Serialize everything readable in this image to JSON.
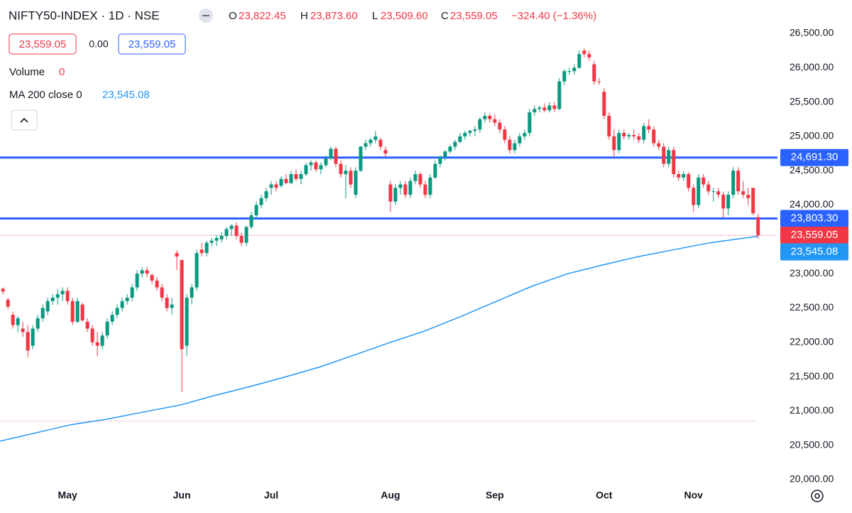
{
  "header": {
    "symbol": "NIFTY50-INDEX · 1D · NSE",
    "o_label": "O",
    "h_label": "H",
    "l_label": "L",
    "c_label": "C",
    "open": {
      "value": 23822.45,
      "label": "23,822.45"
    },
    "high": {
      "value": 23873.6,
      "label": "23,873.60"
    },
    "low": {
      "value": 23509.6,
      "label": "23,509.60"
    },
    "close": {
      "value": 23559.05,
      "label": "23,559.05"
    },
    "change": "−324.40 (−1.36%)",
    "sell": "23,559.05",
    "spread": "0.00",
    "buy": "23,559.05",
    "volume_label": "Volume",
    "volume_value": "0",
    "ma_label": "MA 200 close 0",
    "ma_value": "23,545.08"
  },
  "chart_data": {
    "type": "candlestick",
    "up_color": "#089981",
    "down_color": "#f23645",
    "grid": false,
    "ylim": [
      20000,
      26500
    ],
    "yticks": [
      {
        "value": 20000,
        "label": "20,000.00"
      },
      {
        "value": 20500,
        "label": "20,500.00"
      },
      {
        "value": 21000,
        "label": "21,000.00"
      },
      {
        "value": 21500,
        "label": "21,500.00"
      },
      {
        "value": 22000,
        "label": "22,000.00"
      },
      {
        "value": 22500,
        "label": "22,500.00"
      },
      {
        "value": 23000,
        "label": "23,000.00"
      },
      {
        "value": 23500,
        "label": "23,500.00"
      },
      {
        "value": 24000,
        "label": "24,000.00"
      },
      {
        "value": 24500,
        "label": "24,500.00"
      },
      {
        "value": 25000,
        "label": "25,000.00"
      },
      {
        "value": 25500,
        "label": "25,500.00"
      },
      {
        "value": 26000,
        "label": "26,000.00"
      },
      {
        "value": 26500,
        "label": "26,500.00"
      }
    ],
    "xlim": [
      -0.6,
      155.9
    ],
    "xticks": [
      {
        "value": 13,
        "label": "May"
      },
      {
        "value": 36,
        "label": "Jun"
      },
      {
        "value": 54,
        "label": "Jul"
      },
      {
        "value": 78,
        "label": "Aug"
      },
      {
        "value": 99,
        "label": "Sep"
      },
      {
        "value": 121,
        "label": "Oct"
      },
      {
        "value": 139,
        "label": "Nov"
      }
    ],
    "ohlc": [
      [
        22780,
        22800,
        22700,
        22740
      ],
      [
        22620,
        22650,
        22480,
        22520
      ],
      [
        22400,
        22450,
        22200,
        22250
      ],
      [
        22250,
        22380,
        22150,
        22350
      ],
      [
        22200,
        22300,
        22080,
        22150
      ],
      [
        22150,
        22250,
        21780,
        21880
      ],
      [
        21950,
        22250,
        21900,
        22200
      ],
      [
        22200,
        22400,
        22150,
        22350
      ],
      [
        22350,
        22550,
        22300,
        22500
      ],
      [
        22450,
        22650,
        22400,
        22600
      ],
      [
        22600,
        22700,
        22550,
        22650
      ],
      [
        22650,
        22780,
        22550,
        22700
      ],
      [
        22700,
        22800,
        22600,
        22750
      ],
      [
        22750,
        22800,
        22550,
        22600
      ],
      [
        22600,
        22650,
        22250,
        22300
      ],
      [
        22300,
        22650,
        22280,
        22600
      ],
      [
        22550,
        22580,
        22300,
        22320
      ],
      [
        22300,
        22350,
        22150,
        22200
      ],
      [
        22200,
        22250,
        21950,
        22000
      ],
      [
        22000,
        22150,
        21800,
        21950
      ],
      [
        21950,
        22150,
        21900,
        22100
      ],
      [
        22100,
        22350,
        22050,
        22300
      ],
      [
        22300,
        22450,
        22250,
        22400
      ],
      [
        22400,
        22550,
        22350,
        22500
      ],
      [
        22500,
        22650,
        22450,
        22600
      ],
      [
        22600,
        22700,
        22550,
        22650
      ],
      [
        22650,
        22850,
        22600,
        22800
      ],
      [
        22800,
        23050,
        22750,
        23000
      ],
      [
        23000,
        23100,
        22950,
        23050
      ],
      [
        23050,
        23100,
        22950,
        23000
      ],
      [
        22980,
        23000,
        22850,
        22900
      ],
      [
        22900,
        22950,
        22750,
        22800
      ],
      [
        22800,
        22850,
        22600,
        22650
      ],
      [
        22650,
        22700,
        22450,
        22500
      ],
      [
        22500,
        22650,
        22400,
        22550
      ],
      [
        23300,
        23340,
        23050,
        23250
      ],
      [
        23200,
        23200,
        21280,
        21900
      ],
      [
        21950,
        22700,
        21800,
        22650
      ],
      [
        22650,
        22850,
        22550,
        22800
      ],
      [
        22800,
        23350,
        22750,
        23300
      ],
      [
        23350,
        23450,
        23250,
        23300
      ],
      [
        23300,
        23480,
        23250,
        23450
      ],
      [
        23450,
        23520,
        23400,
        23480
      ],
      [
        23480,
        23560,
        23400,
        23520
      ],
      [
        23500,
        23600,
        23450,
        23550
      ],
      [
        23550,
        23680,
        23500,
        23650
      ],
      [
        23650,
        23720,
        23550,
        23700
      ],
      [
        23700,
        23750,
        23500,
        23550
      ],
      [
        23550,
        23600,
        23400,
        23450
      ],
      [
        23450,
        23700,
        23400,
        23680
      ],
      [
        23680,
        23900,
        23650,
        23850
      ],
      [
        23850,
        24050,
        23800,
        24000
      ],
      [
        24000,
        24150,
        23950,
        24100
      ],
      [
        24100,
        24250,
        24050,
        24200
      ],
      [
        24250,
        24350,
        24150,
        24300
      ],
      [
        24300,
        24350,
        24200,
        24250
      ],
      [
        24280,
        24420,
        24250,
        24380
      ],
      [
        24380,
        24450,
        24300,
        24320
      ],
      [
        24320,
        24500,
        24300,
        24450
      ],
      [
        24450,
        24520,
        24350,
        24380
      ],
      [
        24380,
        24500,
        24300,
        24450
      ],
      [
        24450,
        24620,
        24420,
        24580
      ],
      [
        24580,
        24650,
        24500,
        24620
      ],
      [
        24620,
        24650,
        24480,
        24520
      ],
      [
        24520,
        24620,
        24450,
        24580
      ],
      [
        24580,
        24720,
        24550,
        24680
      ],
      [
        24680,
        24850,
        24650,
        24820
      ],
      [
        24820,
        24850,
        24550,
        24600
      ],
      [
        24600,
        24650,
        24400,
        24450
      ],
      [
        24450,
        24580,
        24100,
        24500
      ],
      [
        24500,
        24550,
        24250,
        24300
      ],
      [
        24150,
        24550,
        24100,
        24500
      ],
      [
        24500,
        24860,
        24480,
        24850
      ],
      [
        24850,
        24950,
        24800,
        24900
      ],
      [
        24900,
        24980,
        24850,
        24950
      ],
      [
        24950,
        25080,
        24900,
        25000
      ],
      [
        24950,
        24980,
        24800,
        24850
      ],
      [
        24800,
        24850,
        24700,
        24750
      ],
      [
        24300,
        24350,
        23900,
        24050
      ],
      [
        24050,
        24300,
        24000,
        24250
      ],
      [
        24250,
        24350,
        24150,
        24300
      ],
      [
        24300,
        24350,
        24100,
        24150
      ],
      [
        24150,
        24400,
        24100,
        24350
      ],
      [
        24350,
        24500,
        24300,
        24450
      ],
      [
        24450,
        24480,
        24250,
        24300
      ],
      [
        24300,
        24350,
        24100,
        24150
      ],
      [
        24150,
        24450,
        24100,
        24400
      ],
      [
        24400,
        24650,
        24380,
        24600
      ],
      [
        24600,
        24720,
        24550,
        24700
      ],
      [
        24700,
        24800,
        24650,
        24780
      ],
      [
        24780,
        24880,
        24750,
        24850
      ],
      [
        24850,
        24950,
        24800,
        24920
      ],
      [
        24920,
        25050,
        24900,
        25000
      ],
      [
        25000,
        25080,
        24950,
        25050
      ],
      [
        25050,
        25100,
        25000,
        25080
      ],
      [
        25080,
        25150,
        25000,
        25100
      ],
      [
        25100,
        25280,
        25050,
        25250
      ],
      [
        25250,
        25350,
        25200,
        25300
      ],
      [
        25300,
        25330,
        25200,
        25250
      ],
      [
        25250,
        25320,
        25150,
        25200
      ],
      [
        25200,
        25250,
        25050,
        25100
      ],
      [
        25100,
        25150,
        24900,
        24950
      ],
      [
        24950,
        25000,
        24750,
        24800
      ],
      [
        24800,
        24950,
        24750,
        24900
      ],
      [
        24900,
        25050,
        24850,
        25000
      ],
      [
        25000,
        25100,
        24950,
        25050
      ],
      [
        25050,
        25400,
        25000,
        25350
      ],
      [
        25350,
        25450,
        25300,
        25400
      ],
      [
        25400,
        25450,
        25350,
        25420
      ],
      [
        25420,
        25480,
        25350,
        25380
      ],
      [
        25380,
        25500,
        25350,
        25450
      ],
      [
        25450,
        25500,
        25350,
        25400
      ],
      [
        25400,
        25850,
        25380,
        25800
      ],
      [
        25800,
        25980,
        25750,
        25950
      ],
      [
        25950,
        26000,
        25900,
        25950
      ],
      [
        25950,
        26050,
        25900,
        26000
      ],
      [
        26000,
        26250,
        25980,
        26200
      ],
      [
        26250,
        26280,
        26150,
        26200
      ],
      [
        26200,
        26250,
        26100,
        26150
      ],
      [
        26050,
        26100,
        25750,
        25800
      ],
      [
        25800,
        25850,
        25750,
        25790
      ],
      [
        25650,
        25700,
        25250,
        25300
      ],
      [
        25300,
        25350,
        24950,
        25000
      ],
      [
        25000,
        25100,
        24700,
        24800
      ],
      [
        24800,
        25100,
        24750,
        25050
      ],
      [
        25050,
        25100,
        24950,
        25000
      ],
      [
        25000,
        25050,
        24950,
        25020
      ],
      [
        25020,
        25100,
        24950,
        25000
      ],
      [
        25000,
        25050,
        24900,
        24950
      ],
      [
        24950,
        25200,
        24900,
        25150
      ],
      [
        25150,
        25250,
        25050,
        25100
      ],
      [
        25100,
        25150,
        24850,
        24900
      ],
      [
        24900,
        24950,
        24800,
        24850
      ],
      [
        24850,
        24900,
        24550,
        24600
      ],
      [
        24600,
        24850,
        24550,
        24800
      ],
      [
        24800,
        24850,
        24400,
        24450
      ],
      [
        24450,
        24500,
        24350,
        24400
      ],
      [
        24400,
        24500,
        24350,
        24450
      ],
      [
        24450,
        24480,
        24200,
        24250
      ],
      [
        24250,
        24300,
        23900,
        24000
      ],
      [
        24000,
        24450,
        23950,
        24400
      ],
      [
        24400,
        24450,
        24250,
        24300
      ],
      [
        24300,
        24350,
        24150,
        24200
      ],
      [
        24200,
        24250,
        24050,
        24200
      ],
      [
        24200,
        24250,
        24100,
        24150
      ],
      [
        24150,
        24200,
        23820,
        23950
      ],
      [
        23950,
        24200,
        23850,
        24150
      ],
      [
        24150,
        24550,
        24100,
        24500
      ],
      [
        24500,
        24550,
        24150,
        24200
      ],
      [
        24200,
        24350,
        24100,
        24150
      ],
      [
        24150,
        24250,
        24000,
        24100
      ],
      [
        24250,
        24250,
        23850,
        23880
      ],
      [
        23822.45,
        23873.6,
        23509.6,
        23559.05
      ]
    ],
    "ma": {
      "color": "#2196f3",
      "x": [
        -0.6,
        13.7,
        20.9,
        28,
        35.9,
        42.3,
        49.4,
        56.6,
        63.7,
        70.9,
        78,
        85.1,
        92.3,
        99.4,
        106.6,
        113.7,
        120.9,
        128,
        135.1,
        142.3,
        152
      ],
      "values": [
        20560,
        20800,
        20880,
        20980,
        21090,
        21220,
        21350,
        21490,
        21640,
        21820,
        22000,
        22170,
        22380,
        22600,
        22820,
        23000,
        23130,
        23250,
        23350,
        23450,
        23545.08
      ],
      "last_label": "23,545.08"
    },
    "levels": [
      {
        "value": 24691.3,
        "label": "24,691.30"
      },
      {
        "value": 23803.3,
        "label": "23,803.30"
      }
    ],
    "level_color": "#2962ff",
    "last_price": {
      "value": 23559.05,
      "label": "23,559.05"
    },
    "dashed_level": 20850
  }
}
